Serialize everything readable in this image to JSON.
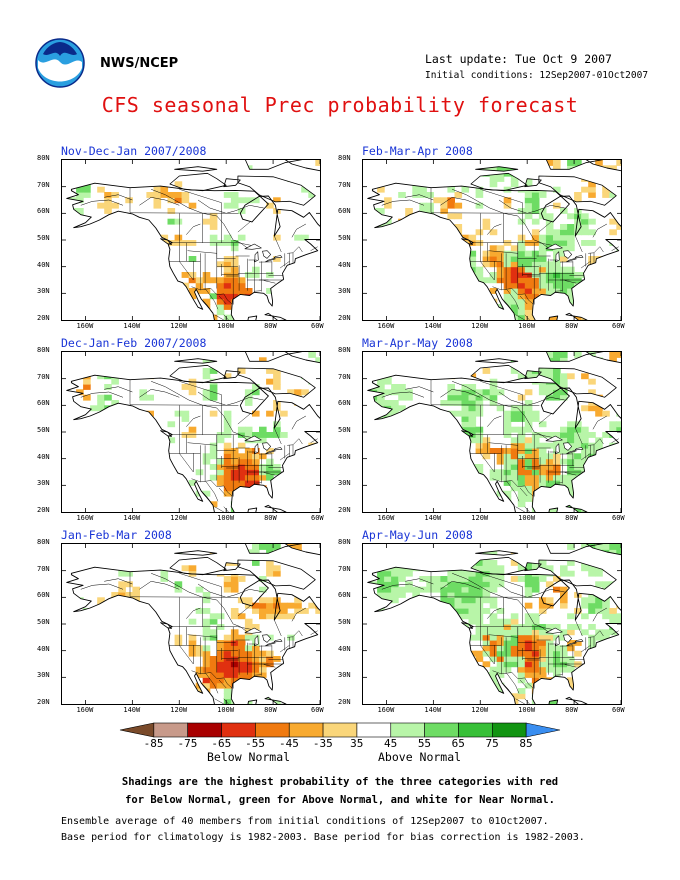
{
  "header": {
    "org": "NWS/NCEP",
    "last_update": "Last update: Tue Oct 9 2007",
    "initial_conditions": "Initial conditions: 12Sep2007-01Oct2007",
    "logo_icon": "noaa-logo-icon"
  },
  "title": "CFS seasonal Prec probability forecast",
  "axes": {
    "lon_ticks": [
      "160W",
      "140W",
      "120W",
      "100W",
      "80W",
      "60W"
    ],
    "lat_ticks": [
      "20N",
      "30N",
      "40N",
      "50N",
      "60N",
      "70N",
      "80N"
    ]
  },
  "panels": [
    {
      "title": "Nov-Dec-Jan 2007/2008",
      "seed": 11,
      "red": 0.25,
      "green": 0.25,
      "cluster": [
        -104,
        27
      ]
    },
    {
      "title": "Feb-Mar-Apr 2008",
      "seed": 23,
      "red": 0.3,
      "green": 0.4,
      "cluster": [
        -105,
        36
      ]
    },
    {
      "title": "Dec-Jan-Feb 2007/2008",
      "seed": 37,
      "red": 0.25,
      "green": 0.28,
      "cluster": [
        -97,
        33
      ]
    },
    {
      "title": "Mar-Apr-May 2008",
      "seed": 41,
      "red": 0.25,
      "green": 0.45,
      "cluster": [
        -103,
        36
      ]
    },
    {
      "title": "Jan-Feb-Mar 2008",
      "seed": 53,
      "red": 0.35,
      "green": 0.25,
      "cluster": [
        -100,
        34
      ]
    },
    {
      "title": "Apr-May-Jun 2008",
      "seed": 67,
      "red": 0.2,
      "green": 0.55,
      "cluster": [
        -108,
        40
      ]
    }
  ],
  "colorbar": {
    "labels": [
      "-85",
      "-75",
      "-65",
      "-55",
      "-45",
      "-35",
      "35",
      "45",
      "55",
      "65",
      "75",
      "85"
    ],
    "colors": [
      "#7a4a2a",
      "#c89a8a",
      "#a80000",
      "#e03010",
      "#f07a10",
      "#f8aa30",
      "#fad67a",
      "#ffffff",
      "#b8f5a8",
      "#6edc64",
      "#38c038",
      "#129412",
      "#3a8ef0"
    ],
    "below_label": "Below Normal",
    "above_label": "Above Normal"
  },
  "notes": [
    "Shadings are the highest probability of the three categories with red",
    "for Below Normal, green for Above Normal, and white for Near Normal."
  ],
  "footer": [
    "Ensemble average of 40 members from initial conditions of 12Sep2007 to 01Oct2007.",
    "Base period for climatology is 1982-2003. Base period for bias correction is 1982-2003."
  ]
}
